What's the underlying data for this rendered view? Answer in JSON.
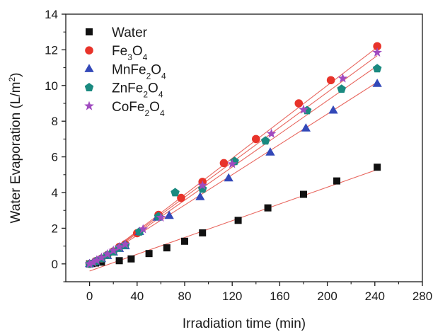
{
  "chart_data": {
    "type": "scatter",
    "xlabel": "Irradiation time (min)",
    "ylabel_main": "Water Evaporation (L/m",
    "ylabel_sup": "2",
    "ylabel_end": ")",
    "xlim": [
      -20,
      280
    ],
    "ylim": [
      -1,
      14
    ],
    "x_ticks": [
      0,
      40,
      80,
      120,
      160,
      200,
      240,
      280
    ],
    "y_ticks": [
      0,
      2,
      4,
      6,
      8,
      10,
      12,
      14
    ],
    "x_tick_labels": [
      "0",
      "40",
      "80",
      "120",
      "160",
      "200",
      "240",
      "280"
    ],
    "y_tick_labels": [
      "0",
      "2",
      "4",
      "6",
      "8",
      "10",
      "12",
      "14"
    ],
    "legend_position": "top-left",
    "fit_line_color": "#e8675f",
    "series": [
      {
        "name": "Water",
        "legend_parts": [
          [
            "Water",
            ""
          ]
        ],
        "marker": "square",
        "color": "#111111",
        "fit": [
          -0.4,
          0.0235
        ],
        "x": [
          0,
          2,
          5,
          10,
          25,
          35,
          50,
          65,
          80,
          95,
          125,
          150,
          180,
          208,
          242
        ],
        "y": [
          0.0,
          0.02,
          0.05,
          0.1,
          0.18,
          0.28,
          0.58,
          0.9,
          1.27,
          1.74,
          2.44,
          3.14,
          3.9,
          4.65,
          5.42
        ]
      },
      {
        "name": "Fe3O4",
        "legend_parts": [
          [
            "Fe",
            ""
          ],
          [
            "3",
            "sub"
          ],
          [
            "O",
            ""
          ],
          [
            "4",
            "sub"
          ]
        ],
        "marker": "circle",
        "color": "#e8332a",
        "fit": [
          -0.2,
          0.051
        ],
        "x": [
          0,
          5,
          10,
          15,
          20,
          25,
          30,
          40,
          58,
          77,
          95,
          113,
          140,
          176,
          203,
          242
        ],
        "y": [
          0.0,
          0.15,
          0.3,
          0.5,
          0.7,
          0.95,
          1.1,
          1.72,
          2.75,
          3.7,
          4.6,
          5.65,
          7.0,
          9.0,
          10.3,
          12.2
        ]
      },
      {
        "name": "MnFe2O4",
        "legend_parts": [
          [
            "MnFe",
            ""
          ],
          [
            "2",
            "sub"
          ],
          [
            "O",
            ""
          ],
          [
            "4",
            "sub"
          ]
        ],
        "marker": "triangle",
        "color": "#3348b8",
        "fit": [
          -0.1,
          0.0425
        ],
        "x": [
          0,
          5,
          10,
          15,
          20,
          25,
          30,
          42,
          57,
          67,
          93,
          117,
          152,
          182,
          205,
          242
        ],
        "y": [
          0.0,
          0.12,
          0.28,
          0.45,
          0.65,
          0.85,
          1.0,
          1.8,
          2.6,
          2.7,
          3.75,
          4.8,
          6.25,
          7.6,
          8.6,
          10.1
        ]
      },
      {
        "name": "ZnFe2O4",
        "legend_parts": [
          [
            "ZnFe",
            ""
          ],
          [
            "2",
            "sub"
          ],
          [
            "O",
            ""
          ],
          [
            "4",
            "sub"
          ]
        ],
        "marker": "pentagon",
        "color": "#1a8a80",
        "fit": [
          -0.15,
          0.0465
        ],
        "x": [
          0,
          5,
          10,
          15,
          20,
          25,
          30,
          42,
          58,
          72,
          95,
          122,
          148,
          183,
          212,
          242
        ],
        "y": [
          0.0,
          0.13,
          0.3,
          0.5,
          0.68,
          0.9,
          1.05,
          1.8,
          2.65,
          4.0,
          4.2,
          5.75,
          6.9,
          8.6,
          9.8,
          10.95
        ]
      },
      {
        "name": "CoFe2O4",
        "legend_parts": [
          [
            "CoFe",
            ""
          ],
          [
            "2",
            "sub"
          ],
          [
            "O",
            ""
          ],
          [
            "4",
            "sub"
          ]
        ],
        "marker": "star",
        "color": "#a04bc0",
        "fit": [
          -0.18,
          0.049
        ],
        "x": [
          0,
          3,
          6,
          10,
          15,
          20,
          25,
          30,
          45,
          60,
          95,
          120,
          153,
          180,
          213,
          242
        ],
        "y": [
          0.0,
          0.08,
          0.2,
          0.35,
          0.55,
          0.75,
          0.95,
          1.1,
          1.95,
          2.6,
          4.4,
          5.6,
          7.3,
          8.65,
          10.4,
          11.85
        ]
      }
    ]
  }
}
